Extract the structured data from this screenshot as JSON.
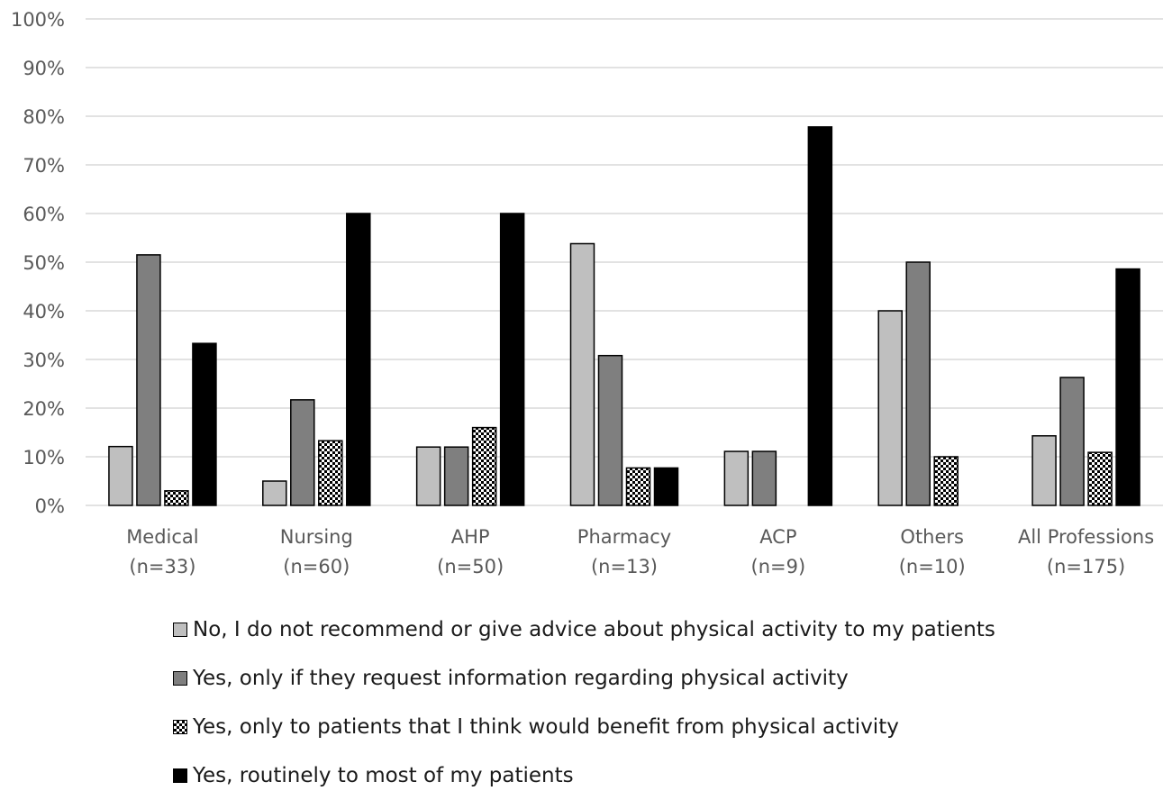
{
  "chart_data": {
    "type": "bar",
    "categories": [
      [
        "Medical",
        "(n=33)"
      ],
      [
        "Nursing",
        "(n=60)"
      ],
      [
        "AHP",
        "(n=50)"
      ],
      [
        "Pharmacy",
        "(n=13)"
      ],
      [
        "ACP",
        "(n=9)"
      ],
      [
        "Others",
        "(n=10)"
      ],
      [
        "All Professions",
        "(n=175)"
      ]
    ],
    "ylim": [
      0,
      100
    ],
    "yticks": [
      "0%",
      "10%",
      "20%",
      "30%",
      "40%",
      "50%",
      "60%",
      "70%",
      "80%",
      "90%",
      "100%"
    ],
    "grid": true,
    "legend_position": "bottom",
    "series": [
      {
        "name": "No, I do not recommend or give advice about physical activity to my patients",
        "values": [
          12.1,
          5.0,
          12.0,
          53.8,
          11.1,
          40.0,
          14.3
        ],
        "color": "#bfbfbf"
      },
      {
        "name": "Yes, only if they request information regarding physical activity",
        "values": [
          51.5,
          21.7,
          12.0,
          30.8,
          11.1,
          50.0,
          26.3
        ],
        "color": "#7f7f7f"
      },
      {
        "name": "Yes, only to patients that I think would benefit from physical activity",
        "values": [
          3.0,
          13.3,
          16.0,
          7.7,
          0,
          10.0,
          10.9
        ],
        "color": "checkered"
      },
      {
        "name": "Yes, routinely to most of my patients",
        "values": [
          33.3,
          60.0,
          60.0,
          7.7,
          77.8,
          0,
          48.6
        ],
        "color": "#000000"
      }
    ]
  }
}
